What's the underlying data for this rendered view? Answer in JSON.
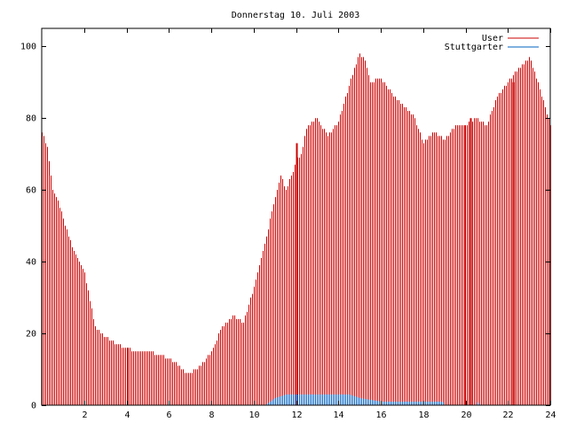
{
  "chart_data": {
    "type": "bar",
    "title": "Donnerstag 10. Juli 2003",
    "xlabel": "",
    "ylabel": "",
    "xlim": [
      0,
      24
    ],
    "ylim": [
      0,
      105
    ],
    "x_ticks": [
      2,
      4,
      6,
      8,
      10,
      12,
      14,
      16,
      18,
      20,
      22,
      24
    ],
    "x_tick_labels": [
      "2",
      "4",
      "6",
      "8",
      "10",
      "12",
      "14",
      "16",
      "18",
      "20",
      "22",
      "24"
    ],
    "y_ticks": [
      0,
      20,
      40,
      60,
      80,
      100
    ],
    "y_tick_labels": [
      "0",
      "20",
      "40",
      "60",
      "80",
      "100"
    ],
    "grid": false,
    "legend_position": "top-right",
    "colors": {
      "User": "#cc0000",
      "Stuttgarter": "#0060c0"
    },
    "series": [
      {
        "name": "User",
        "sample_interval_minutes": 5,
        "anchors": [
          [
            0.0,
            76
          ],
          [
            0.25,
            72
          ],
          [
            0.5,
            60
          ],
          [
            0.75,
            57
          ],
          [
            1.0,
            52
          ],
          [
            1.25,
            47
          ],
          [
            1.5,
            43
          ],
          [
            1.75,
            40
          ],
          [
            2.0,
            37
          ],
          [
            2.25,
            29
          ],
          [
            2.5,
            22
          ],
          [
            2.75,
            20
          ],
          [
            3.0,
            19
          ],
          [
            3.5,
            17
          ],
          [
            4.0,
            16
          ],
          [
            4.5,
            15
          ],
          [
            5.0,
            15
          ],
          [
            5.5,
            14
          ],
          [
            6.0,
            13
          ],
          [
            6.5,
            11
          ],
          [
            6.75,
            9
          ],
          [
            7.0,
            9
          ],
          [
            7.5,
            11
          ],
          [
            8.0,
            15
          ],
          [
            8.5,
            22
          ],
          [
            9.0,
            25
          ],
          [
            9.5,
            23
          ],
          [
            10.0,
            33
          ],
          [
            10.5,
            45
          ],
          [
            11.0,
            58
          ],
          [
            11.25,
            64
          ],
          [
            11.5,
            60
          ],
          [
            12.0,
            68
          ],
          [
            12.25,
            70
          ],
          [
            12.5,
            77
          ],
          [
            13.0,
            80
          ],
          [
            13.5,
            75
          ],
          [
            14.0,
            79
          ],
          [
            14.5,
            89
          ],
          [
            15.0,
            98
          ],
          [
            15.25,
            96
          ],
          [
            15.5,
            90
          ],
          [
            16.0,
            91
          ],
          [
            16.5,
            87
          ],
          [
            17.0,
            84
          ],
          [
            17.5,
            81
          ],
          [
            18.0,
            73
          ],
          [
            18.5,
            76
          ],
          [
            19.0,
            74
          ],
          [
            19.5,
            78
          ],
          [
            20.0,
            78
          ],
          [
            20.5,
            80
          ],
          [
            21.0,
            78
          ],
          [
            21.5,
            86
          ],
          [
            22.0,
            90
          ],
          [
            22.5,
            94
          ],
          [
            23.0,
            97
          ],
          [
            23.5,
            88
          ],
          [
            24.0,
            78
          ]
        ],
        "spikes": [
          {
            "x": 12.0,
            "value": 73
          },
          {
            "x": 20.25,
            "value": 80
          },
          {
            "x": 22.25,
            "value": 90
          }
        ]
      },
      {
        "name": "Stuttgarter",
        "sample_interval_minutes": 5,
        "anchors": [
          [
            0.0,
            0
          ],
          [
            4.0,
            0
          ],
          [
            4.08,
            0
          ],
          [
            10.5,
            0
          ],
          [
            10.75,
            1
          ],
          [
            11.0,
            2
          ],
          [
            11.5,
            3
          ],
          [
            14.5,
            3
          ],
          [
            15.0,
            2
          ],
          [
            16.0,
            1
          ],
          [
            18.9,
            1
          ],
          [
            19.0,
            0
          ],
          [
            20.5,
            0
          ],
          [
            20.6,
            1
          ],
          [
            20.7,
            0
          ],
          [
            24.0,
            0
          ]
        ]
      }
    ]
  }
}
